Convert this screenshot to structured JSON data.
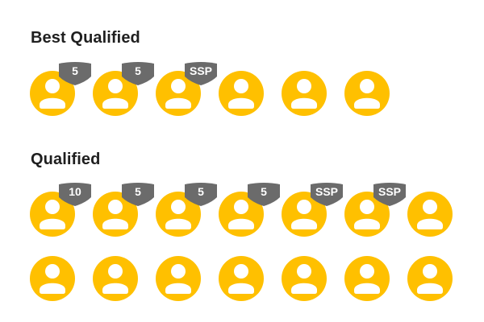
{
  "colors": {
    "avatar": "#FFC000",
    "badge": "#6B6B6B",
    "title": "#1F1F1F"
  },
  "groups": [
    {
      "title": "Best Qualified",
      "rows": [
        [
          {
            "badge": "5"
          },
          {
            "badge": "5"
          },
          {
            "badge": "SSP"
          },
          {
            "badge": null
          },
          {
            "badge": null
          },
          {
            "badge": null
          }
        ]
      ]
    },
    {
      "title": "Qualified",
      "rows": [
        [
          {
            "badge": "10"
          },
          {
            "badge": "5"
          },
          {
            "badge": "5"
          },
          {
            "badge": "5"
          },
          {
            "badge": "SSP"
          },
          {
            "badge": "SSP"
          },
          {
            "badge": null
          }
        ],
        [
          {
            "badge": null
          },
          {
            "badge": null
          },
          {
            "badge": null
          },
          {
            "badge": null
          },
          {
            "badge": null
          },
          {
            "badge": null
          },
          {
            "badge": null
          }
        ]
      ]
    }
  ]
}
